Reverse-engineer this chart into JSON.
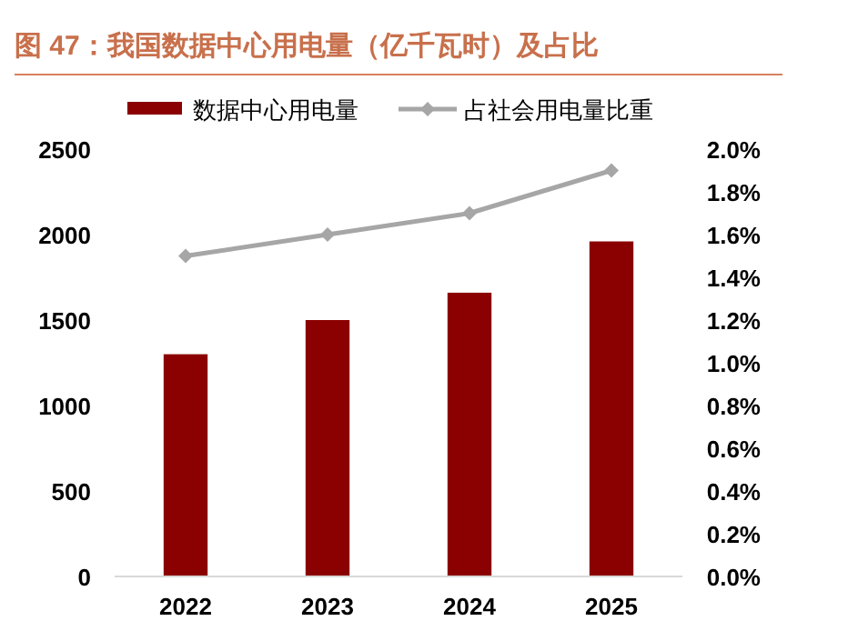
{
  "chart_data": {
    "type": "bar",
    "title": "图 47：我国数据中心用电量（亿千瓦时）及占比",
    "categories": [
      "2022",
      "2023",
      "2024",
      "2025"
    ],
    "series": [
      {
        "name": "数据中心用电量",
        "color": "#8b0000",
        "values": [
          1300,
          1500,
          1660,
          1960
        ]
      },
      {
        "name": "占社会用电量比重",
        "type": "line",
        "axis": "y2",
        "color": "#a6a6a6",
        "marker": "diamond",
        "values": [
          1.5,
          1.6,
          1.7,
          1.9
        ]
      }
    ],
    "ylim": [
      0,
      2500
    ],
    "yticks": [
      0,
      500,
      1000,
      1500,
      2000,
      2500
    ],
    "y2lim": [
      0,
      2.0
    ],
    "y2ticks": [
      {
        "value": 0,
        "label": "0.0%"
      },
      {
        "value": 0.2,
        "label": "0.2%"
      },
      {
        "value": 0.4,
        "label": "0.4%"
      },
      {
        "value": 0.6,
        "label": "0.6%"
      },
      {
        "value": 0.8,
        "label": "0.8%"
      },
      {
        "value": 1.0,
        "label": "1.0%"
      },
      {
        "value": 1.2,
        "label": "1.2%"
      },
      {
        "value": 1.4,
        "label": "1.4%"
      },
      {
        "value": 1.6,
        "label": "1.6%"
      },
      {
        "value": 1.8,
        "label": "1.8%"
      },
      {
        "value": 2.0,
        "label": "2.0%"
      }
    ],
    "legend": "top",
    "grid": false
  }
}
